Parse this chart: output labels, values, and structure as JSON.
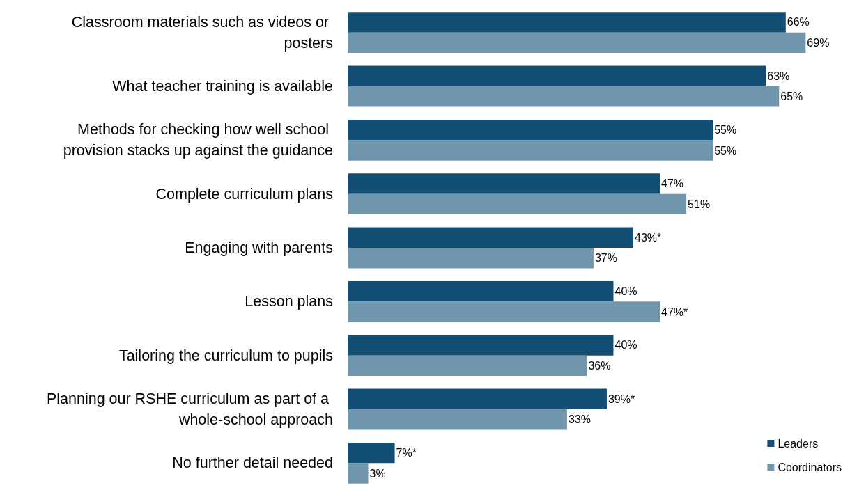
{
  "chart_data": {
    "type": "bar",
    "orientation": "horizontal",
    "categories": [
      "Classroom materials such as videos or posters",
      "What teacher training is available",
      "Methods for checking how well school provision stacks up against the guidance",
      "Complete curriculum plans",
      "Engaging with parents",
      "Lesson plans",
      "Tailoring the curriculum to pupils",
      "Planning our RSHE curriculum as part of a whole-school approach",
      "No further detail needed"
    ],
    "series": [
      {
        "name": "Leaders",
        "color": "#124e73",
        "values": [
          66,
          63,
          55,
          47,
          43,
          40,
          40,
          39,
          7
        ],
        "value_labels": [
          "66%",
          "63%",
          "55%",
          "47%",
          "43%*",
          "40%",
          "40%",
          "39%*",
          "7%*"
        ]
      },
      {
        "name": "Coordinators",
        "color": "#7096ae",
        "values": [
          69,
          65,
          55,
          51,
          37,
          47,
          36,
          33,
          3
        ],
        "value_labels": [
          "69%",
          "65%",
          "55%",
          "51%",
          "37%",
          "47%*",
          "36%",
          "33%",
          "3%"
        ]
      }
    ],
    "legend": "bottom right"
  }
}
